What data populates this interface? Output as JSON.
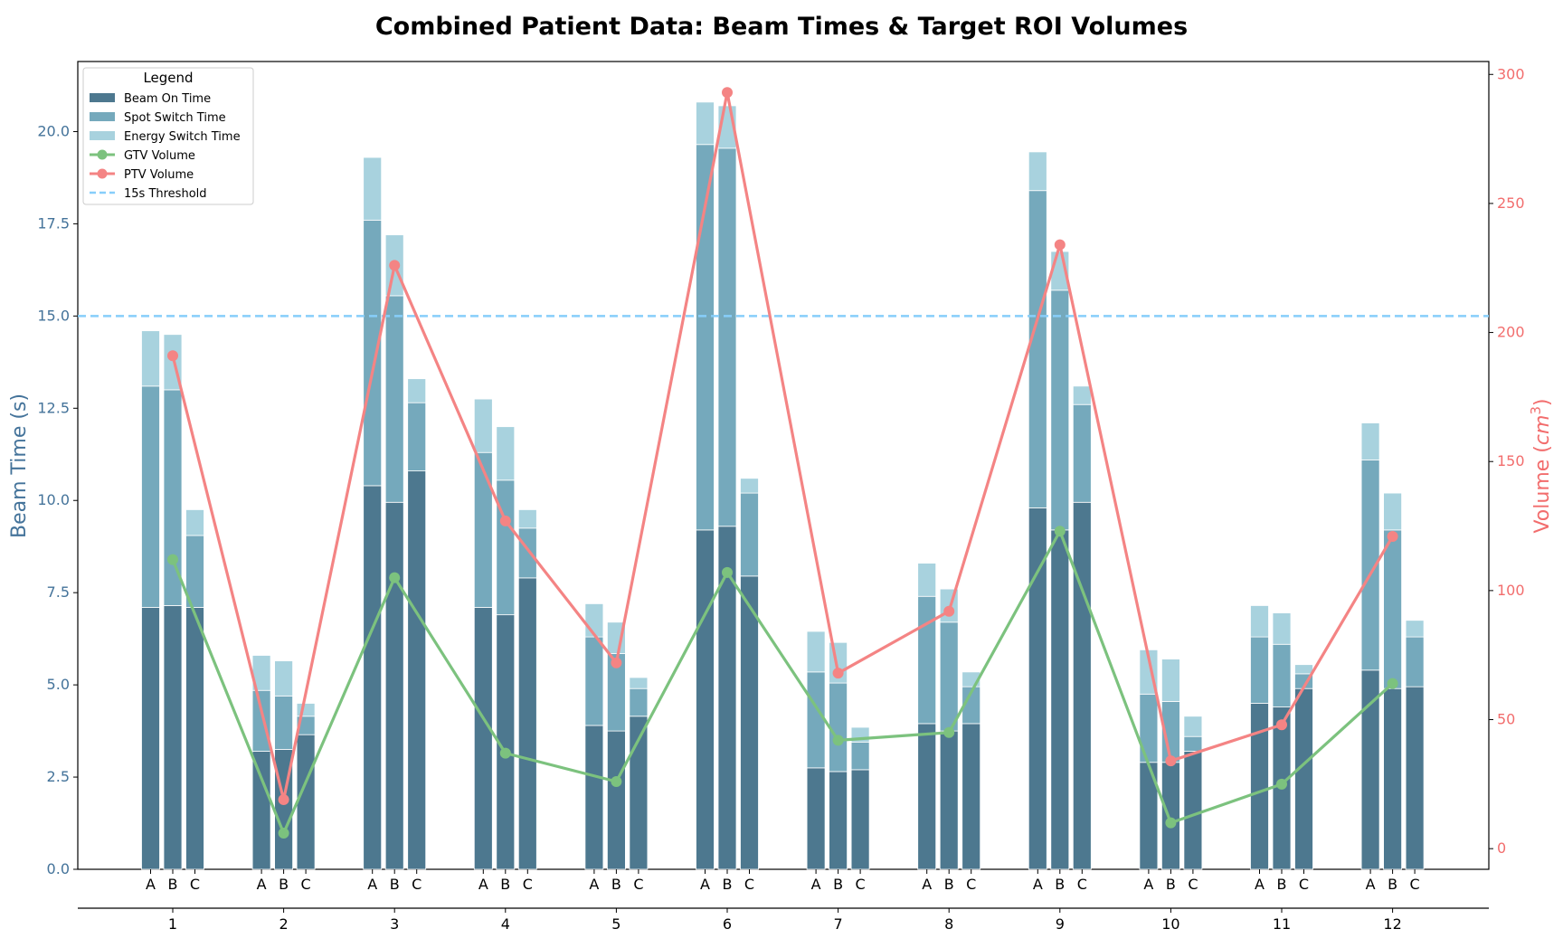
{
  "chart_data": {
    "type": "bar",
    "title": "Combined Patient Data: Beam Times & Target ROI Volumes",
    "ylabel": "Beam Time (s)",
    "y2label_prefix": "Volume (",
    "y2label_unit_base": "cm",
    "y2label_unit_exp": "3",
    "y2label_suffix": ")",
    "ylim": [
      0,
      21.9
    ],
    "y2lim": [
      -8,
      305
    ],
    "yticks": [
      "0.0",
      "2.5",
      "5.0",
      "7.5",
      "10.0",
      "12.5",
      "15.0",
      "17.5",
      "20.0"
    ],
    "ytick_values": [
      0,
      2.5,
      5,
      7.5,
      10,
      12.5,
      15,
      17.5,
      20
    ],
    "y2ticks": [
      "0",
      "50",
      "100",
      "150",
      "200",
      "250",
      "300"
    ],
    "y2tick_values": [
      0,
      50,
      100,
      150,
      200,
      250,
      300
    ],
    "patients": [
      "1",
      "2",
      "3",
      "4",
      "5",
      "6",
      "7",
      "8",
      "9",
      "10",
      "11",
      "12"
    ],
    "fields": [
      "A",
      "B",
      "C"
    ],
    "stack_series": [
      {
        "name": "Beam On Time",
        "color": "#4d788f",
        "values": [
          [
            7.1,
            7.15,
            7.1
          ],
          [
            3.2,
            3.25,
            3.65
          ],
          [
            10.4,
            9.95,
            10.8
          ],
          [
            7.1,
            6.9,
            7.9
          ],
          [
            3.9,
            3.75,
            4.15
          ],
          [
            9.2,
            9.3,
            7.95
          ],
          [
            2.75,
            2.65,
            2.7
          ],
          [
            3.95,
            3.75,
            3.95
          ],
          [
            9.8,
            9.2,
            9.95
          ],
          [
            2.9,
            2.9,
            3.2
          ],
          [
            4.5,
            4.4,
            4.9
          ],
          [
            5.4,
            4.9,
            4.95
          ]
        ]
      },
      {
        "name": "Spot Switch Time",
        "color": "#75a9bc",
        "values": [
          [
            6.0,
            5.85,
            1.95
          ],
          [
            1.65,
            1.45,
            0.5
          ],
          [
            7.2,
            5.6,
            1.85
          ],
          [
            4.2,
            3.65,
            1.35
          ],
          [
            2.4,
            2.1,
            0.75
          ],
          [
            10.45,
            10.25,
            2.25
          ],
          [
            2.6,
            2.4,
            0.75
          ],
          [
            3.45,
            2.95,
            1.0
          ],
          [
            8.6,
            6.5,
            2.65
          ],
          [
            1.85,
            1.65,
            0.4
          ],
          [
            1.8,
            1.7,
            0.4
          ],
          [
            5.7,
            4.3,
            1.35
          ]
        ]
      },
      {
        "name": "Energy Switch Time",
        "color": "#a8d2de",
        "values": [
          [
            1.5,
            1.5,
            0.7
          ],
          [
            0.95,
            0.95,
            0.35
          ],
          [
            1.7,
            1.65,
            0.65
          ],
          [
            1.45,
            1.45,
            0.5
          ],
          [
            0.9,
            0.85,
            0.3
          ],
          [
            1.15,
            1.15,
            0.4
          ],
          [
            1.1,
            1.1,
            0.4
          ],
          [
            0.9,
            0.9,
            0.4
          ],
          [
            1.05,
            1.05,
            0.5
          ],
          [
            1.2,
            1.15,
            0.55
          ],
          [
            0.85,
            0.85,
            0.25
          ],
          [
            1.0,
            1.0,
            0.45
          ]
        ]
      }
    ],
    "line_series": [
      {
        "name": "GTV Volume",
        "color": "#7cc27e",
        "values": [
          112,
          6,
          105,
          37,
          26,
          107,
          42,
          45,
          123,
          10,
          25,
          64
        ]
      },
      {
        "name": "PTV Volume",
        "color": "#f48484",
        "values": [
          191,
          19,
          226,
          127,
          72,
          293,
          68,
          92,
          234,
          34,
          48,
          121
        ]
      }
    ],
    "threshold": {
      "name": "15s Threshold",
      "value": 15,
      "color": "#87cefa"
    },
    "legend": {
      "title": "Legend",
      "placement": "top-left"
    },
    "grid": false
  }
}
